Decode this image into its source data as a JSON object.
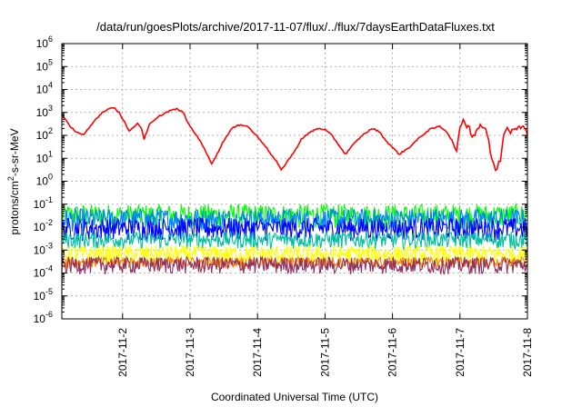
{
  "chart_data": {
    "type": "line",
    "title": "/data/run/goesPlots/archive/2017-11-07/flux/../flux/7daysEarthDataFluxes.txt",
    "xlabel": "Coordinated Universal Time (UTC)",
    "ylabel_base": "protons/cm",
    "ylabel_sup": "2",
    "ylabel_rest": "-s-sr-MeV",
    "y_scale": "log",
    "ylim_exp": [
      -6,
      6
    ],
    "y_tick_exponents": [
      -6,
      -5,
      -4,
      -3,
      -2,
      -1,
      0,
      1,
      2,
      3,
      4,
      5,
      6
    ],
    "y_tick_base": "10",
    "xlim_days": [
      1.1,
      8.0
    ],
    "x_ticks": [
      {
        "day": 2,
        "label": "2017-11-2"
      },
      {
        "day": 3,
        "label": "2017-11-3"
      },
      {
        "day": 4,
        "label": "2017-11-4"
      },
      {
        "day": 5,
        "label": "2017-11-5"
      },
      {
        "day": 6,
        "label": "2017-11-6"
      },
      {
        "day": 7,
        "label": "2017-11-7"
      },
      {
        "day": 8,
        "label": "2017-11-8"
      }
    ],
    "grid": true,
    "legend": "none",
    "series": [
      {
        "color": "#ff0000",
        "style": "line",
        "points": [
          [
            1.1,
            800
          ],
          [
            1.2,
            300
          ],
          [
            1.3,
            150
          ],
          [
            1.42,
            100
          ],
          [
            1.5,
            200
          ],
          [
            1.6,
            500
          ],
          [
            1.7,
            1000
          ],
          [
            1.8,
            1500
          ],
          [
            1.87,
            1600
          ],
          [
            1.95,
            1000
          ],
          [
            2.05,
            300
          ],
          [
            2.1,
            150
          ],
          [
            2.15,
            200
          ],
          [
            2.22,
            350
          ],
          [
            2.28,
            200
          ],
          [
            2.32,
            70
          ],
          [
            2.4,
            300
          ],
          [
            2.55,
            700
          ],
          [
            2.7,
            1200
          ],
          [
            2.8,
            1400
          ],
          [
            2.9,
            1000
          ],
          [
            2.98,
            300
          ],
          [
            3.05,
            150
          ],
          [
            3.15,
            60
          ],
          [
            3.25,
            15
          ],
          [
            3.32,
            6
          ],
          [
            3.4,
            15
          ],
          [
            3.5,
            60
          ],
          [
            3.62,
            200
          ],
          [
            3.75,
            300
          ],
          [
            3.85,
            250
          ],
          [
            3.98,
            100
          ],
          [
            4.1,
            40
          ],
          [
            4.2,
            15
          ],
          [
            4.3,
            6
          ],
          [
            4.35,
            3
          ],
          [
            4.45,
            8
          ],
          [
            4.55,
            20
          ],
          [
            4.65,
            70
          ],
          [
            4.8,
            150
          ],
          [
            4.9,
            200
          ],
          [
            5.0,
            180
          ],
          [
            5.1,
            100
          ],
          [
            5.2,
            40
          ],
          [
            5.3,
            15
          ],
          [
            5.42,
            40
          ],
          [
            5.55,
            100
          ],
          [
            5.7,
            200
          ],
          [
            5.8,
            150
          ],
          [
            5.9,
            60
          ],
          [
            6.0,
            30
          ],
          [
            6.1,
            15
          ],
          [
            6.25,
            30
          ],
          [
            6.4,
            80
          ],
          [
            6.55,
            180
          ],
          [
            6.7,
            250
          ],
          [
            6.8,
            150
          ],
          [
            6.88,
            60
          ],
          [
            6.95,
            20
          ],
          [
            7.0,
            150
          ],
          [
            7.05,
            600
          ],
          [
            7.1,
            300
          ],
          [
            7.2,
            100
          ],
          [
            7.3,
            300
          ],
          [
            7.38,
            200
          ],
          [
            7.45,
            20
          ],
          [
            7.5,
            5
          ],
          [
            7.55,
            3
          ],
          [
            7.6,
            10
          ],
          [
            7.65,
            100
          ],
          [
            7.7,
            300
          ],
          [
            7.75,
            150
          ],
          [
            7.82,
            250
          ],
          [
            7.9,
            300
          ],
          [
            8.0,
            100
          ]
        ]
      },
      {
        "color": "#00ff00",
        "style": "band",
        "level_exp": [
          -2.3,
          -1.0
        ],
        "x": [
          1.1,
          8.0
        ]
      },
      {
        "color": "#0080ff",
        "style": "band",
        "level_exp": [
          -2.4,
          -1.2
        ],
        "x": [
          1.1,
          8.0
        ]
      },
      {
        "color": "#0000ff",
        "style": "band",
        "level_exp": [
          -2.8,
          -1.6
        ],
        "x": [
          1.1,
          8.0
        ]
      },
      {
        "color": "#00c0a0",
        "style": "band",
        "level_exp": [
          -3.1,
          -2.2
        ],
        "x": [
          1.1,
          8.0
        ]
      },
      {
        "color": "#ffff00",
        "style": "band",
        "level_exp": [
          -3.8,
          -2.8
        ],
        "x": [
          1.1,
          8.0
        ]
      },
      {
        "color": "#ff8000",
        "style": "band",
        "level_exp": [
          -3.9,
          -3.3
        ],
        "x": [
          1.1,
          8.0
        ]
      },
      {
        "color": "#903060",
        "style": "band",
        "level_exp": [
          -4.2,
          -3.3
        ],
        "x": [
          1.1,
          8.0
        ]
      }
    ]
  }
}
